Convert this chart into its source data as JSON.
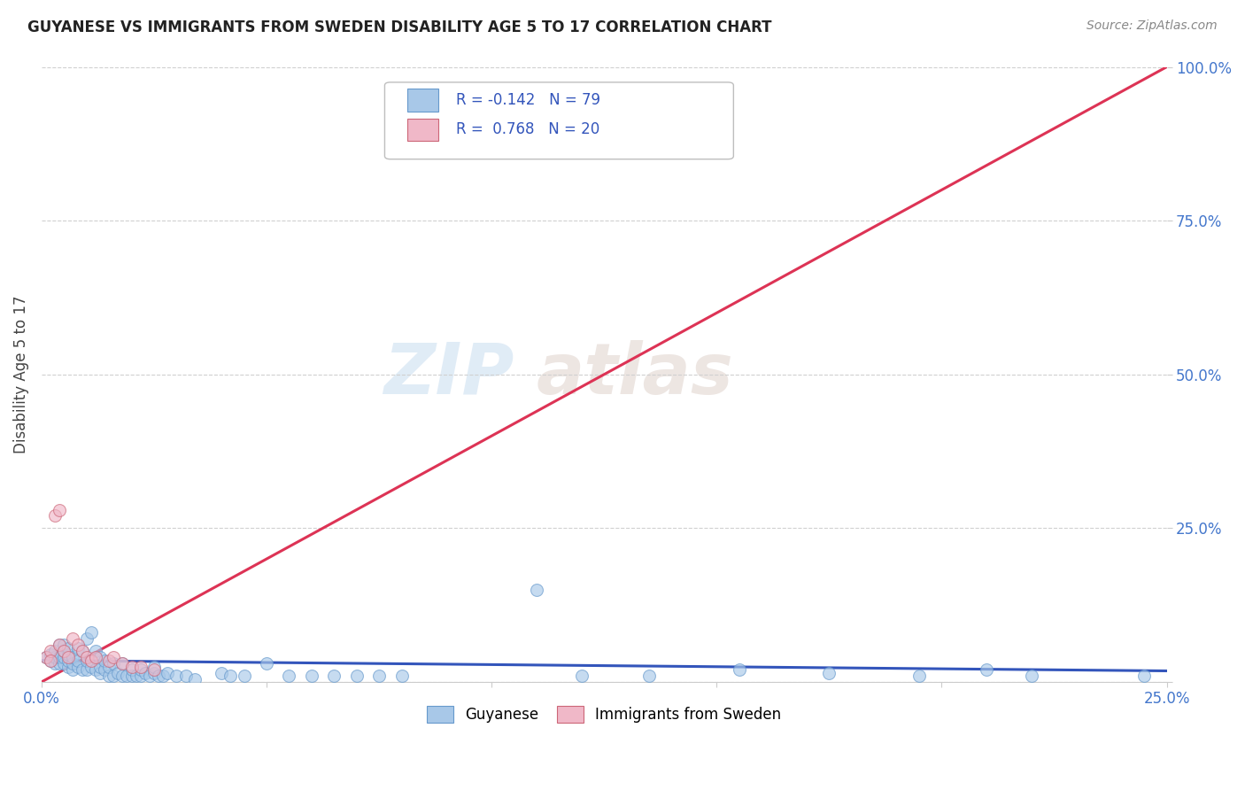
{
  "title": "GUYANESE VS IMMIGRANTS FROM SWEDEN DISABILITY AGE 5 TO 17 CORRELATION CHART",
  "source": "Source: ZipAtlas.com",
  "ylabel": "Disability Age 5 to 17",
  "xlim": [
    0.0,
    0.25
  ],
  "ylim": [
    0.0,
    1.0
  ],
  "xticks": [
    0.0,
    0.05,
    0.1,
    0.15,
    0.2,
    0.25
  ],
  "xticklabels": [
    "0.0%",
    "",
    "",
    "",
    "",
    "25.0%"
  ],
  "ytick_positions": [
    0.0,
    0.25,
    0.5,
    0.75,
    1.0
  ],
  "yticklabels": [
    "",
    "25.0%",
    "50.0%",
    "75.0%",
    "100.0%"
  ],
  "grid_color": "#d0d0d0",
  "background_color": "#ffffff",
  "watermark_zip": "ZIP",
  "watermark_atlas": "atlas",
  "blue_color": "#a8c8e8",
  "blue_edge_color": "#6699cc",
  "pink_color": "#f0b8c8",
  "pink_edge_color": "#cc6677",
  "scatter_alpha": 0.65,
  "marker_size": 100,
  "guyanese_x": [
    0.001,
    0.002,
    0.002,
    0.003,
    0.003,
    0.003,
    0.004,
    0.004,
    0.004,
    0.005,
    0.005,
    0.005,
    0.005,
    0.006,
    0.006,
    0.006,
    0.006,
    0.007,
    0.007,
    0.007,
    0.008,
    0.008,
    0.008,
    0.009,
    0.009,
    0.01,
    0.01,
    0.01,
    0.011,
    0.011,
    0.012,
    0.012,
    0.013,
    0.013,
    0.013,
    0.014,
    0.014,
    0.015,
    0.015,
    0.016,
    0.016,
    0.017,
    0.018,
    0.018,
    0.019,
    0.02,
    0.02,
    0.021,
    0.022,
    0.022,
    0.023,
    0.024,
    0.025,
    0.025,
    0.026,
    0.027,
    0.028,
    0.03,
    0.032,
    0.034,
    0.04,
    0.042,
    0.045,
    0.05,
    0.055,
    0.06,
    0.065,
    0.07,
    0.075,
    0.08,
    0.11,
    0.12,
    0.135,
    0.155,
    0.175,
    0.195,
    0.21,
    0.22,
    0.245
  ],
  "guyanese_y": [
    0.04,
    0.035,
    0.045,
    0.03,
    0.04,
    0.05,
    0.03,
    0.04,
    0.06,
    0.03,
    0.04,
    0.05,
    0.06,
    0.025,
    0.035,
    0.045,
    0.055,
    0.02,
    0.03,
    0.04,
    0.025,
    0.035,
    0.055,
    0.02,
    0.05,
    0.02,
    0.035,
    0.07,
    0.025,
    0.08,
    0.02,
    0.05,
    0.015,
    0.025,
    0.04,
    0.02,
    0.035,
    0.01,
    0.025,
    0.01,
    0.03,
    0.015,
    0.01,
    0.03,
    0.01,
    0.01,
    0.02,
    0.01,
    0.01,
    0.02,
    0.015,
    0.01,
    0.015,
    0.025,
    0.01,
    0.01,
    0.015,
    0.01,
    0.01,
    0.005,
    0.015,
    0.01,
    0.01,
    0.03,
    0.01,
    0.01,
    0.01,
    0.01,
    0.01,
    0.01,
    0.15,
    0.01,
    0.01,
    0.02,
    0.015,
    0.01,
    0.02,
    0.01,
    0.01
  ],
  "sweden_x": [
    0.001,
    0.002,
    0.002,
    0.003,
    0.004,
    0.004,
    0.005,
    0.006,
    0.007,
    0.008,
    0.009,
    0.01,
    0.011,
    0.012,
    0.015,
    0.016,
    0.018,
    0.02,
    0.022,
    0.025
  ],
  "sweden_y": [
    0.04,
    0.05,
    0.035,
    0.27,
    0.28,
    0.06,
    0.05,
    0.04,
    0.07,
    0.06,
    0.05,
    0.04,
    0.035,
    0.04,
    0.035,
    0.04,
    0.03,
    0.025,
    0.025,
    0.02
  ],
  "blue_trendline_x": [
    0.0,
    0.25
  ],
  "blue_trendline_y": [
    0.035,
    0.018
  ],
  "pink_trendline_x": [
    0.0,
    0.25
  ],
  "pink_trendline_y": [
    0.0,
    1.0
  ],
  "legend_r1_val": "-0.142",
  "legend_n1_val": "79",
  "legend_r2_val": "0.768",
  "legend_n2_val": "20",
  "title_fontsize": 12,
  "tick_fontsize": 12,
  "ylabel_fontsize": 12
}
